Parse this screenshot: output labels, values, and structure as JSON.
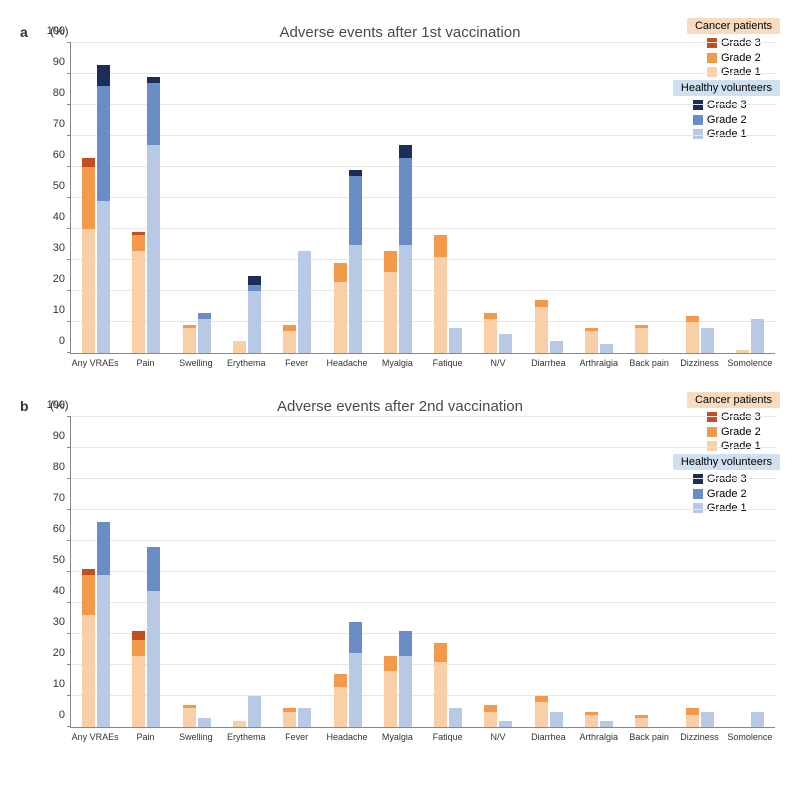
{
  "colors": {
    "cancer_g1": "#f9cfa7",
    "cancer_g2": "#f2994a",
    "cancer_g3": "#c24f1f",
    "healthy_g1": "#b8c9e6",
    "healthy_g2": "#6a8cc7",
    "healthy_g3": "#1c2d5a",
    "cancer_header_bg": "#f9dcc0",
    "healthy_header_bg": "#cfe0f0",
    "grid": "#e6e6e6"
  },
  "y_axis": {
    "min": 0,
    "max": 100,
    "step": 10,
    "label": "(%)"
  },
  "legend": {
    "cancer": {
      "title": "Cancer patients",
      "items": [
        "Grade 3",
        "Grade 2",
        "Grade 1"
      ]
    },
    "healthy": {
      "title": "Healthy volunteers",
      "items": [
        "Grade 3",
        "Grade 2",
        "Grade 1"
      ]
    }
  },
  "charts": [
    {
      "panel": "a",
      "title": "Adverse events after 1st vaccination",
      "categories": [
        "Any VRAEs",
        "Pain",
        "Swelling",
        "Erythema",
        "Fever",
        "Headache",
        "Myalgia",
        "Fatique",
        "N/V",
        "Diarrhea",
        "Arthralgia",
        "Back pain",
        "Dizziness",
        "Somolence"
      ],
      "cancer": [
        [
          40,
          20,
          3
        ],
        [
          33,
          5,
          1
        ],
        [
          8,
          1,
          0
        ],
        [
          4,
          0,
          0
        ],
        [
          7,
          2,
          0
        ],
        [
          23,
          6,
          0
        ],
        [
          26,
          7,
          0
        ],
        [
          31,
          7,
          0
        ],
        [
          11,
          2,
          0
        ],
        [
          15,
          2,
          0
        ],
        [
          7,
          1,
          0
        ],
        [
          8,
          1,
          0
        ],
        [
          10,
          2,
          0
        ],
        [
          1,
          0,
          0
        ]
      ],
      "healthy": [
        [
          49,
          37,
          7
        ],
        [
          67,
          20,
          2
        ],
        [
          11,
          2,
          0
        ],
        [
          20,
          2,
          3
        ],
        [
          33,
          0,
          0
        ],
        [
          35,
          22,
          2
        ],
        [
          35,
          28,
          4
        ],
        [
          8,
          0,
          0
        ],
        [
          6,
          0,
          0
        ],
        [
          4,
          0,
          0
        ],
        [
          3,
          0,
          0
        ],
        [
          0,
          0,
          0
        ],
        [
          8,
          0,
          0
        ],
        [
          11,
          0,
          0
        ]
      ]
    },
    {
      "panel": "b",
      "title": "Adverse events after 2nd vaccination",
      "categories": [
        "Any VRAEs",
        "Pain",
        "Swelling",
        "Erythema",
        "Fever",
        "Headache",
        "Myalgia",
        "Fatique",
        "N/V",
        "Diarrhea",
        "Arthralgia",
        "Back pain",
        "Dizziness",
        "Somolence"
      ],
      "cancer": [
        [
          36,
          13,
          2
        ],
        [
          23,
          5,
          3
        ],
        [
          6,
          1,
          0
        ],
        [
          2,
          0,
          0
        ],
        [
          5,
          1,
          0
        ],
        [
          13,
          4,
          0
        ],
        [
          18,
          5,
          0
        ],
        [
          21,
          6,
          0
        ],
        [
          5,
          2,
          0
        ],
        [
          8,
          2,
          0
        ],
        [
          4,
          1,
          0
        ],
        [
          3,
          1,
          0
        ],
        [
          4,
          2,
          0
        ],
        [
          0,
          0,
          0
        ]
      ],
      "healthy": [
        [
          49,
          17,
          0
        ],
        [
          44,
          14,
          0
        ],
        [
          3,
          0,
          0
        ],
        [
          10,
          0,
          0
        ],
        [
          6,
          0,
          0
        ],
        [
          24,
          10,
          0
        ],
        [
          23,
          8,
          0
        ],
        [
          6,
          0,
          0
        ],
        [
          2,
          0,
          0
        ],
        [
          5,
          0,
          0
        ],
        [
          2,
          0,
          0
        ],
        [
          0,
          0,
          0
        ],
        [
          5,
          0,
          0
        ],
        [
          5,
          0,
          0
        ]
      ]
    }
  ]
}
